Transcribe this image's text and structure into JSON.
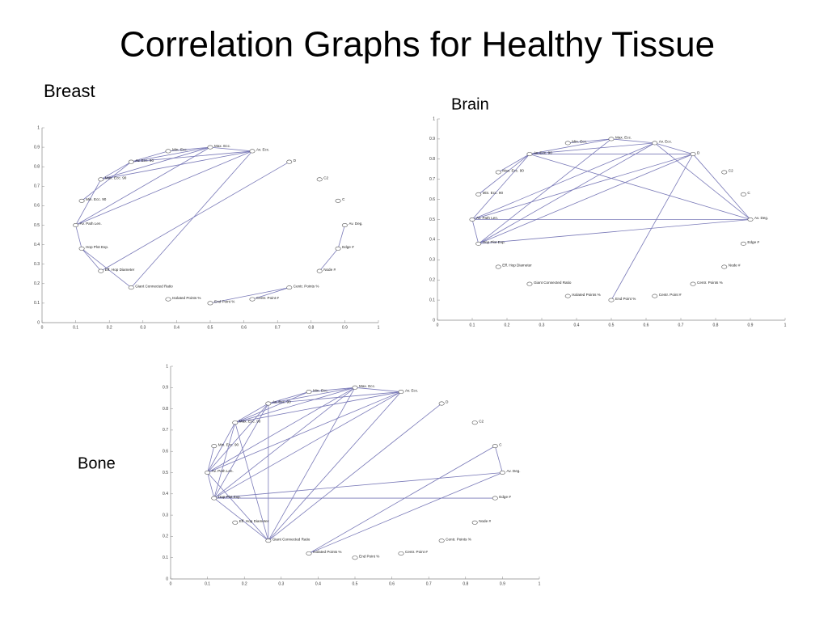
{
  "title": "Correlation Graphs for Healthy Tissue",
  "chart_data": [
    {
      "type": "network",
      "title": "Breast",
      "xlim": [
        0,
        1
      ],
      "ylim": [
        0,
        1
      ],
      "xticks": [
        0,
        0.1,
        0.2,
        0.3,
        0.4,
        0.5,
        0.6,
        0.7,
        0.8,
        0.9,
        1
      ],
      "yticks": [
        0,
        0.1,
        0.2,
        0.3,
        0.4,
        0.5,
        0.6,
        0.7,
        0.8,
        0.9,
        1
      ],
      "edge_color": "#7a7ab8",
      "nodes": [
        {
          "label": "Max. Ecc.",
          "x": 0.5,
          "y": 0.9
        },
        {
          "label": "Min. Ecc.",
          "x": 0.375,
          "y": 0.88
        },
        {
          "label": "Av. Ecc.",
          "x": 0.625,
          "y": 0.88
        },
        {
          "label": "Av. Ecc. 90",
          "x": 0.265,
          "y": 0.825
        },
        {
          "label": "Max. Ecc. 90",
          "x": 0.175,
          "y": 0.735
        },
        {
          "label": "Min. Ecc. 90",
          "x": 0.118,
          "y": 0.625
        },
        {
          "label": "Av. Path Len.",
          "x": 0.1,
          "y": 0.5
        },
        {
          "label": "Hop Plot Exp.",
          "x": 0.118,
          "y": 0.38
        },
        {
          "label": "Eff. Hop Diameter",
          "x": 0.175,
          "y": 0.265
        },
        {
          "label": "Giant Connected Ratio",
          "x": 0.265,
          "y": 0.18
        },
        {
          "label": "Isolated Points %",
          "x": 0.375,
          "y": 0.12
        },
        {
          "label": "End Point %",
          "x": 0.5,
          "y": 0.1
        },
        {
          "label": "Centr. Point #",
          "x": 0.625,
          "y": 0.12
        },
        {
          "label": "Centr. Points %",
          "x": 0.735,
          "y": 0.18
        },
        {
          "label": "Node #",
          "x": 0.825,
          "y": 0.265
        },
        {
          "label": "Edge #",
          "x": 0.88,
          "y": 0.38
        },
        {
          "label": "Av. Deg.",
          "x": 0.9,
          "y": 0.5
        },
        {
          "label": "C",
          "x": 0.88,
          "y": 0.625
        },
        {
          "label": "C2",
          "x": 0.825,
          "y": 0.735
        },
        {
          "label": "D",
          "x": 0.735,
          "y": 0.825
        }
      ],
      "edges": [
        [
          1,
          0
        ],
        [
          0,
          2
        ],
        [
          3,
          1
        ],
        [
          3,
          0
        ],
        [
          3,
          2
        ],
        [
          4,
          3
        ],
        [
          4,
          0
        ],
        [
          4,
          2
        ],
        [
          5,
          3
        ],
        [
          6,
          4
        ],
        [
          6,
          2
        ],
        [
          6,
          0
        ],
        [
          6,
          7
        ],
        [
          7,
          8
        ],
        [
          8,
          19
        ],
        [
          7,
          9
        ],
        [
          9,
          2
        ],
        [
          11,
          13
        ],
        [
          12,
          13
        ],
        [
          16,
          15
        ],
        [
          15,
          14
        ]
      ]
    },
    {
      "type": "network",
      "title": "Brain",
      "xlim": [
        0,
        1
      ],
      "ylim": [
        0,
        1
      ],
      "xticks": [
        0,
        0.1,
        0.2,
        0.3,
        0.4,
        0.5,
        0.6,
        0.7,
        0.8,
        0.9,
        1
      ],
      "yticks": [
        0,
        0.1,
        0.2,
        0.3,
        0.4,
        0.5,
        0.6,
        0.7,
        0.8,
        0.9,
        1
      ],
      "edge_color": "#7a7ab8",
      "nodes": [
        {
          "label": "Max. Ecc.",
          "x": 0.5,
          "y": 0.9
        },
        {
          "label": "Min. Ecc.",
          "x": 0.375,
          "y": 0.88
        },
        {
          "label": "Av. Ecc.",
          "x": 0.625,
          "y": 0.88
        },
        {
          "label": "Av. Ecc. 90",
          "x": 0.265,
          "y": 0.825
        },
        {
          "label": "Max. Ecc. 90",
          "x": 0.175,
          "y": 0.735
        },
        {
          "label": "Min. Ecc. 90",
          "x": 0.118,
          "y": 0.625
        },
        {
          "label": "Av. Path Len.",
          "x": 0.1,
          "y": 0.5
        },
        {
          "label": "Hop Plot Exp.",
          "x": 0.118,
          "y": 0.38
        },
        {
          "label": "Eff. Hop Diameter",
          "x": 0.175,
          "y": 0.265
        },
        {
          "label": "Giant Connected Ratio",
          "x": 0.265,
          "y": 0.18
        },
        {
          "label": "Isolated Points %",
          "x": 0.375,
          "y": 0.12
        },
        {
          "label": "End Point %",
          "x": 0.5,
          "y": 0.1
        },
        {
          "label": "Centr. Point #",
          "x": 0.625,
          "y": 0.12
        },
        {
          "label": "Centr. Points %",
          "x": 0.735,
          "y": 0.18
        },
        {
          "label": "Node #",
          "x": 0.825,
          "y": 0.265
        },
        {
          "label": "Edge #",
          "x": 0.88,
          "y": 0.38
        },
        {
          "label": "Av. Deg.",
          "x": 0.9,
          "y": 0.5
        },
        {
          "label": "C",
          "x": 0.88,
          "y": 0.625
        },
        {
          "label": "C2",
          "x": 0.825,
          "y": 0.735
        },
        {
          "label": "D",
          "x": 0.735,
          "y": 0.825
        }
      ],
      "edges": [
        [
          1,
          0
        ],
        [
          0,
          2
        ],
        [
          3,
          0
        ],
        [
          3,
          2
        ],
        [
          3,
          19
        ],
        [
          3,
          16
        ],
        [
          4,
          3
        ],
        [
          5,
          3
        ],
        [
          6,
          3
        ],
        [
          6,
          2
        ],
        [
          6,
          19
        ],
        [
          6,
          16
        ],
        [
          7,
          2
        ],
        [
          7,
          19
        ],
        [
          7,
          16
        ],
        [
          7,
          0
        ],
        [
          2,
          19
        ],
        [
          2,
          16
        ],
        [
          19,
          16
        ],
        [
          6,
          7
        ],
        [
          11,
          19
        ]
      ]
    },
    {
      "type": "network",
      "title": "Bone",
      "xlim": [
        0,
        1
      ],
      "ylim": [
        0,
        1
      ],
      "xticks": [
        0,
        0.1,
        0.2,
        0.3,
        0.4,
        0.5,
        0.6,
        0.7,
        0.8,
        0.9,
        1
      ],
      "yticks": [
        0,
        0.1,
        0.2,
        0.3,
        0.4,
        0.5,
        0.6,
        0.7,
        0.8,
        0.9,
        1
      ],
      "edge_color": "#7a7ab8",
      "nodes": [
        {
          "label": "Max. Ecc.",
          "x": 0.5,
          "y": 0.9
        },
        {
          "label": "Min. Ecc.",
          "x": 0.375,
          "y": 0.88
        },
        {
          "label": "Av. Ecc.",
          "x": 0.625,
          "y": 0.88
        },
        {
          "label": "Av. Ecc. 90",
          "x": 0.265,
          "y": 0.825
        },
        {
          "label": "Max. Ecc. 90",
          "x": 0.175,
          "y": 0.735
        },
        {
          "label": "Min. Ecc. 90",
          "x": 0.118,
          "y": 0.625
        },
        {
          "label": "Av. Path Len.",
          "x": 0.1,
          "y": 0.5
        },
        {
          "label": "Hop Plot Exp.",
          "x": 0.118,
          "y": 0.38
        },
        {
          "label": "Eff. Hop Diameter",
          "x": 0.175,
          "y": 0.265
        },
        {
          "label": "Giant Connected Ratio",
          "x": 0.265,
          "y": 0.18
        },
        {
          "label": "Isolated Points %",
          "x": 0.375,
          "y": 0.12
        },
        {
          "label": "End Point %",
          "x": 0.5,
          "y": 0.1
        },
        {
          "label": "Centr. Point #",
          "x": 0.625,
          "y": 0.12
        },
        {
          "label": "Centr. Points %",
          "x": 0.735,
          "y": 0.18
        },
        {
          "label": "Node #",
          "x": 0.825,
          "y": 0.265
        },
        {
          "label": "Edge #",
          "x": 0.88,
          "y": 0.38
        },
        {
          "label": "Av. Deg.",
          "x": 0.9,
          "y": 0.5
        },
        {
          "label": "C",
          "x": 0.88,
          "y": 0.625
        },
        {
          "label": "C2",
          "x": 0.825,
          "y": 0.735
        },
        {
          "label": "D",
          "x": 0.735,
          "y": 0.825
        }
      ],
      "edges": [
        [
          1,
          0
        ],
        [
          0,
          2
        ],
        [
          1,
          3
        ],
        [
          3,
          0
        ],
        [
          3,
          2
        ],
        [
          4,
          3
        ],
        [
          4,
          0
        ],
        [
          4,
          2
        ],
        [
          4,
          1
        ],
        [
          6,
          4
        ],
        [
          6,
          3
        ],
        [
          6,
          0
        ],
        [
          6,
          2
        ],
        [
          6,
          7
        ],
        [
          7,
          4
        ],
        [
          7,
          3
        ],
        [
          7,
          0
        ],
        [
          7,
          2
        ],
        [
          7,
          16
        ],
        [
          7,
          15
        ],
        [
          9,
          3
        ],
        [
          9,
          4
        ],
        [
          9,
          0
        ],
        [
          9,
          2
        ],
        [
          9,
          6
        ],
        [
          9,
          7
        ],
        [
          9,
          19
        ],
        [
          10,
          17
        ],
        [
          10,
          16
        ],
        [
          17,
          16
        ],
        [
          5,
          6
        ]
      ]
    }
  ]
}
